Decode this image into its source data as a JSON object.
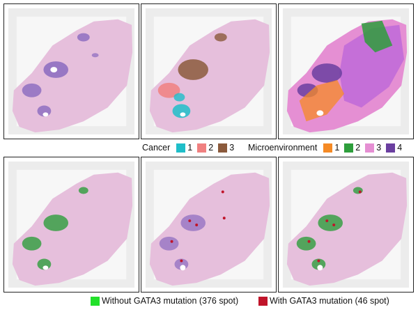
{
  "legend_top": {
    "cancer": {
      "title": "Cancer",
      "items": [
        {
          "label": "1",
          "color": "#1fbec9"
        },
        {
          "label": "2",
          "color": "#f08080"
        },
        {
          "label": "3",
          "color": "#8b5a3c"
        }
      ]
    },
    "microenvironment": {
      "title": "Microenvironment",
      "items": [
        {
          "label": "1",
          "color": "#f58a25"
        },
        {
          "label": "2",
          "color": "#2e9e3c"
        },
        {
          "label": "3",
          "color": "#e58fd3"
        },
        {
          "label": "4",
          "color": "#6b3fa0"
        }
      ]
    }
  },
  "legend_bottom": {
    "without": {
      "label": "Without GATA3 mutation (376 spot)",
      "color": "#22e02a"
    },
    "with": {
      "label": "With GATA3 mutation (46 spot)",
      "color": "#c0142a"
    }
  },
  "colors": {
    "tissue": "#e6bfdc",
    "tissue_dark": "#8a6abf",
    "grid": "#d9d9d9"
  }
}
